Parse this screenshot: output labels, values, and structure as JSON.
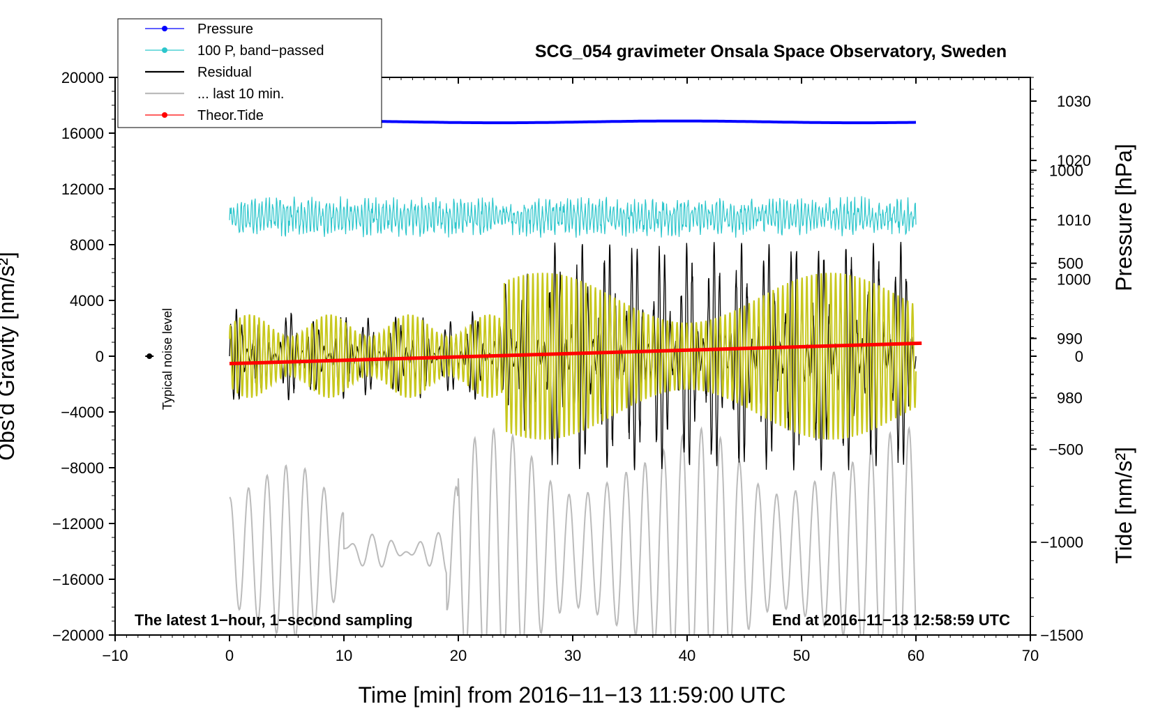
{
  "chart_data": {
    "type": "line",
    "title": "SCG_054 gravimeter Onsala Space Observatory, Sweden",
    "xlabel": "Time [min] from 2016−11−13 11:59:00 UTC",
    "ylabel_left": "Obs'd Gravity [nm/s²]",
    "ylabel_right_pressure": "Pressure [hPa]",
    "ylabel_right_tide": "Tide [nm/s²]",
    "xlim": [
      -10,
      70
    ],
    "ylim_left": [
      -20000,
      20000
    ],
    "ylim_pressure": [
      940,
      1034
    ],
    "ylim_tide": [
      -1500,
      1500
    ],
    "x_ticks": [
      -10,
      0,
      10,
      20,
      30,
      40,
      50,
      60,
      70
    ],
    "x_tick_labels": [
      "−10",
      "0",
      "10",
      "20",
      "30",
      "40",
      "50",
      "60",
      "70"
    ],
    "y_left_ticks": [
      20000,
      16000,
      12000,
      8000,
      4000,
      0,
      -4000,
      -8000,
      -12000,
      -16000,
      -20000
    ],
    "y_left_tick_labels": [
      "20000",
      "16000",
      "12000",
      "8000",
      "4000",
      "0",
      "−4000",
      "−8000",
      "−12000",
      "−16000",
      "−20000"
    ],
    "pressure_ticks": [
      1030,
      1020,
      1010,
      1000,
      990,
      980
    ],
    "pressure_tick_labels": [
      "1030",
      "1020",
      "1010",
      "1000",
      "990",
      "980"
    ],
    "tide_ticks": [
      1000,
      500,
      0,
      -500,
      -1000,
      -1500
    ],
    "tide_tick_labels": [
      "1000",
      "500",
      "0",
      "−500",
      "−1000",
      "−1500"
    ],
    "legend": [
      {
        "label": "Pressure",
        "color": "#0000ff",
        "marker": true
      },
      {
        "label": "100 P, band−passed",
        "color": "#2cc6cc",
        "marker": true
      },
      {
        "label": "Residual",
        "color": "#000000",
        "marker": false
      },
      {
        "label": "... last 10 min.",
        "color": "#bbbbbb",
        "marker": false
      },
      {
        "label": "Theor.Tide",
        "color": "#ff0000",
        "marker": true
      }
    ],
    "legend_position": "top-left",
    "series": [
      {
        "name": "Pressure",
        "axis": "pressure",
        "color": "#0000ff",
        "x_range": [
          0,
          60
        ],
        "approx_value": 1026.5
      },
      {
        "name": "100 P, band−passed",
        "axis": "left",
        "color": "#2cc6cc",
        "x_range": [
          0,
          60
        ],
        "approx_center": 10000,
        "approx_amplitude": 1500
      },
      {
        "name": "Residual",
        "axis": "left",
        "color": "#000000",
        "x_range": [
          0,
          60
        ],
        "approx_center": 0,
        "approx_max": 8500,
        "approx_min": -9500
      },
      {
        "name": "Band-passed residual",
        "axis": "left",
        "color": "#c8c81e",
        "x_range": [
          0,
          60
        ],
        "approx_center": 0,
        "approx_amplitude": 6000
      },
      {
        "name": "... last 10 min.",
        "axis": "left",
        "color": "#bbbbbb",
        "x_range": [
          0,
          60
        ],
        "approx_center": -14000,
        "approx_max": -3800,
        "approx_min": -22000
      },
      {
        "name": "Theor.Tide",
        "axis": "tide",
        "color": "#ff0000",
        "x": [
          0,
          60.5
        ],
        "values": [
          -40,
          70
        ]
      }
    ],
    "noise_marker": {
      "x": -7,
      "y": 0,
      "label": "Typical noise level"
    },
    "notes": {
      "left": "The latest 1−hour, 1−second sampling",
      "right": "End at 2016−11−13 12:58:59 UTC"
    }
  }
}
